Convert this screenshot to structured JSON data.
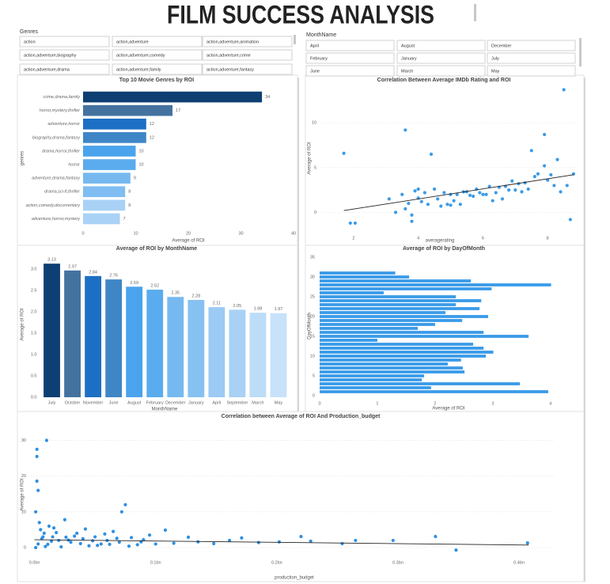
{
  "title": "FILM SUCCESS ANALYSIS",
  "slicers": [
    {
      "label": "Genres",
      "items": [
        "action",
        "action,adventure",
        "action,adventure,animation",
        "action,adventure,biography",
        "action,adventure,comedy",
        "action,adventure,crime",
        "action,adventure,drama",
        "action,adventure,family",
        "action,adventure,fantasy"
      ]
    },
    {
      "label": "MonthName",
      "items": [
        "April",
        "August",
        "December",
        "February",
        "January",
        "July",
        "June",
        "March",
        "May"
      ]
    }
  ],
  "chart_data": [
    {
      "type": "bar",
      "orientation": "horizontal",
      "title": "Top 10 Movie Genres by ROI",
      "x_label": "Average of ROI",
      "y_label": "genres",
      "categories": [
        "crime,drama,family",
        "horror,mystery,thriller",
        "adventure,horror",
        "biography,drama,fantasy",
        "drama,horror,thriller",
        "horror",
        "adventure,drama,fantasy",
        "drama,sci-fi,thriller",
        "action,comedy,documentary",
        "adventure,horror,mystery"
      ],
      "values": [
        34,
        17,
        12,
        12,
        10,
        10,
        9,
        8,
        8,
        7
      ],
      "colors": [
        "#0d3f73",
        "#44729f",
        "#1c6fc4",
        "#3f86c6",
        "#4aa3ec",
        "#5aacee",
        "#76b9f0",
        "#7fbdf2",
        "#a8d1f5",
        "#a9d2f6"
      ],
      "xlim": [
        0,
        40
      ],
      "xticks": [
        0,
        10,
        20,
        30,
        40
      ],
      "grid": false
    },
    {
      "type": "scatter",
      "title": "Correlation Between Average IMDb Rating and ROI",
      "x_label": "averagerating",
      "y_label": "Average of ROI",
      "x": [
        1.7,
        1.9,
        2.05,
        3.1,
        3.3,
        3.5,
        3.6,
        3.6,
        3.7,
        3.8,
        3.8,
        3.9,
        4.0,
        4.0,
        4.1,
        4.2,
        4.3,
        4.4,
        4.5,
        4.6,
        4.7,
        4.8,
        4.9,
        5.0,
        5.0,
        5.1,
        5.2,
        5.3,
        5.4,
        5.5,
        5.6,
        5.7,
        5.8,
        5.9,
        6.0,
        6.1,
        6.2,
        6.3,
        6.4,
        6.5,
        6.6,
        6.7,
        6.8,
        6.9,
        7.0,
        7.1,
        7.2,
        7.3,
        7.4,
        7.5,
        7.6,
        7.7,
        7.9,
        7.9,
        8.0,
        8.1,
        8.2,
        8.3,
        8.4,
        8.5,
        8.6,
        8.7,
        8.8
      ],
      "values": [
        6.6,
        -1.2,
        -1.2,
        1.5,
        0,
        2,
        9.2,
        0.4,
        1,
        -0.3,
        -1,
        2.4,
        2.6,
        1.6,
        1.2,
        2.2,
        0.9,
        6.5,
        2.6,
        1.5,
        0.7,
        2.2,
        0.9,
        0.8,
        2.0,
        1.3,
        2.0,
        0.9,
        2.3,
        2.3,
        1.9,
        1.8,
        2.6,
        2.2,
        2.0,
        2.0,
        2.9,
        1.3,
        2.2,
        2.8,
        1.5,
        2.9,
        2.5,
        3.5,
        2.5,
        3.2,
        2.3,
        3.3,
        2.6,
        6.9,
        4.0,
        4.3,
        8.7,
        5.2,
        3.6,
        4.2,
        3.0,
        5.9,
        2.3,
        13.7,
        3.0,
        -0.8,
        4.3
      ],
      "color": "#3a9be8",
      "trendline": {
        "x": [
          1.7,
          8.8
        ],
        "y": [
          0.2,
          4.2
        ]
      },
      "xlim": [
        1,
        8.9
      ],
      "xticks": [
        2,
        4,
        6,
        8
      ],
      "ylim": [
        -2,
        14
      ],
      "yticks": [
        0,
        5,
        10
      ],
      "grid": true
    },
    {
      "type": "bar",
      "orientation": "vertical",
      "title": "Average of ROI by MonthName",
      "x_label": "MonthName",
      "y_label": "Average of ROI",
      "categories": [
        "July",
        "October",
        "November",
        "June",
        "August",
        "February",
        "December",
        "January",
        "April",
        "September",
        "March",
        "May"
      ],
      "values": [
        3.13,
        2.97,
        2.84,
        2.76,
        2.59,
        2.52,
        2.35,
        2.28,
        2.11,
        2.05,
        1.98,
        1.97
      ],
      "colors": [
        "#0d3f73",
        "#44729f",
        "#1c6fc4",
        "#3f86c6",
        "#4aa3ec",
        "#5aacee",
        "#76b9f0",
        "#86c1f2",
        "#9bcaf4",
        "#a8d1f5",
        "#bcdcf7",
        "#c8e2f9"
      ],
      "ylim": [
        0,
        3.3
      ],
      "yticks": [
        {
          "value": 0,
          "label": "0.0"
        },
        0.5,
        {
          "value": 1,
          "label": "1.0"
        },
        1.5,
        {
          "value": 2,
          "label": "2.0"
        },
        2.5,
        {
          "value": 3,
          "label": "3.0"
        }
      ],
      "grid": false
    },
    {
      "type": "bar",
      "orientation": "horizontal",
      "title": "Average of ROI by DayOfMonth",
      "x_label": "Average of ROI",
      "y_label": "DayOfMonth",
      "x": [
        1,
        2,
        3,
        4,
        5,
        6,
        7,
        8,
        9,
        10,
        11,
        12,
        13,
        14,
        15,
        16,
        17,
        18,
        19,
        20,
        21,
        22,
        23,
        24,
        25,
        26,
        27,
        28,
        29,
        30,
        31
      ],
      "values": [
        3.96,
        1.93,
        3.47,
        1.77,
        1.81,
        2.51,
        2.48,
        2.22,
        2.45,
        2.88,
        3.01,
        2.84,
        2.66,
        1.0,
        3.62,
        2.84,
        1.7,
        2.0,
        2.47,
        2.92,
        2.18,
        2.77,
        2.36,
        2.8,
        2.36,
        1.11,
        2.98,
        4.01,
        2.62,
        1.55,
        1.31
      ],
      "color": "#3a9be8",
      "xlim": [
        0,
        4.4
      ],
      "xticks": [
        0,
        1,
        2,
        3,
        4
      ],
      "ylim": [
        0,
        36
      ],
      "yticks": [
        0,
        5,
        10,
        15,
        20,
        25,
        30,
        35
      ],
      "grid": false
    },
    {
      "type": "scatter",
      "title": "Correlation between Average of ROI And Production_budget",
      "x_label": "production_budget",
      "y_label": "Average of ROI",
      "x": [
        2000000,
        2000000,
        10000000,
        2000000,
        3000000,
        1000000,
        75000000,
        72000000,
        25000000,
        12000000,
        5000000,
        8000000,
        15000000,
        20000000,
        30000000,
        35000000,
        40000000,
        45000000,
        50000000,
        55000000,
        60000000,
        65000000,
        70000000,
        80000000,
        85000000,
        90000000,
        95000000,
        100000000,
        1000000,
        3000000,
        6000000,
        9000000,
        14000000,
        18000000,
        22000000,
        26000000,
        33000000,
        38000000,
        42000000,
        48000000,
        52000000,
        58000000,
        62000000,
        68000000,
        78000000,
        88000000,
        4000000,
        7000000,
        11000000,
        16000000,
        28000000,
        108000000,
        115000000,
        127000000,
        135000000,
        148000000,
        161000000,
        171000000,
        185000000,
        202000000,
        220000000,
        228000000,
        254000000,
        265000000,
        296000000,
        331000000,
        348000000,
        407000000
      ],
      "values": [
        27.5,
        25.5,
        30,
        18.6,
        16,
        10,
        12,
        10,
        7.8,
        6,
        5,
        4,
        3,
        2,
        1.5,
        4,
        2.5,
        0.5,
        3,
        1,
        2,
        4.5,
        1.5,
        2.8,
        0.8,
        2.2,
        3.5,
        1,
        0,
        1,
        2.5,
        0.3,
        1.8,
        4.2,
        0.2,
        2.9,
        3.2,
        1.1,
        5.2,
        1.9,
        0.6,
        3.8,
        0.9,
        2.6,
        0.4,
        1.6,
        7,
        3,
        0.9,
        5.5,
        2.1,
        4.9,
        1.2,
        2.9,
        1.6,
        1.1,
        2.0,
        2.7,
        1.4,
        1.6,
        3.1,
        1.8,
        1.1,
        2.0,
        2.0,
        3.1,
        -0.7,
        1.3
      ],
      "color": "#2f8fe0",
      "trendline": {
        "x": [
          0,
          408000000
        ],
        "y": [
          2.2,
          0.7
        ]
      },
      "xlim": [
        -3000000,
        430000000
      ],
      "xticks": [
        {
          "value": 0,
          "label": "0.0bn"
        },
        {
          "value": 100000000,
          "label": "0.1bn"
        },
        {
          "value": 200000000,
          "label": "0.2bn"
        },
        {
          "value": 300000000,
          "label": "0.3bn"
        },
        {
          "value": 400000000,
          "label": "0.4bn"
        }
      ],
      "ylim": [
        -2,
        31
      ],
      "yticks": [
        0,
        10,
        20,
        30
      ],
      "grid": true
    }
  ]
}
